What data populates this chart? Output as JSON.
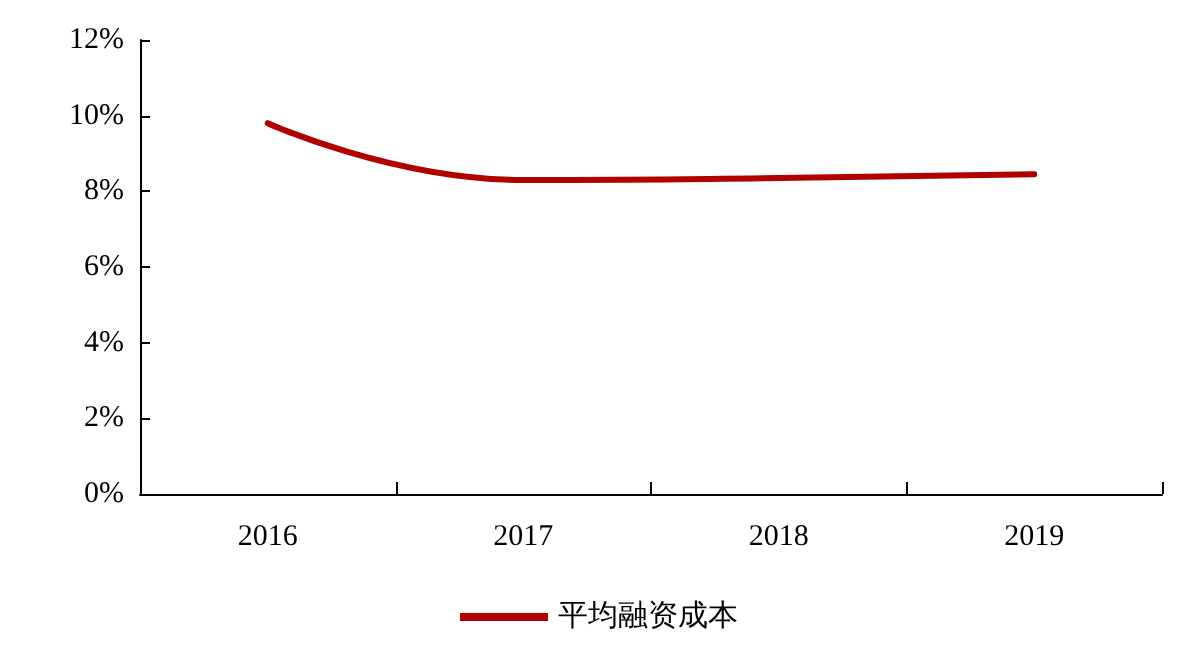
{
  "chart_data": {
    "type": "line",
    "categories": [
      "2016",
      "2017",
      "2018",
      "2019"
    ],
    "series": [
      {
        "name": "平均融资成本",
        "color": "#b00000",
        "values": [
          9.8,
          8.3,
          8.35,
          8.45
        ]
      }
    ],
    "ylim": [
      0,
      12
    ],
    "yticks": [
      {
        "value": 0,
        "label": "0%"
      },
      {
        "value": 2,
        "label": "2%"
      },
      {
        "value": 4,
        "label": "4%"
      },
      {
        "value": 6,
        "label": "6%"
      },
      {
        "value": 8,
        "label": "8%"
      },
      {
        "value": 10,
        "label": "10%"
      },
      {
        "value": 12,
        "label": "12%"
      }
    ],
    "grid": false,
    "legend": "bottom",
    "marker": "none",
    "line_style": "solid"
  }
}
